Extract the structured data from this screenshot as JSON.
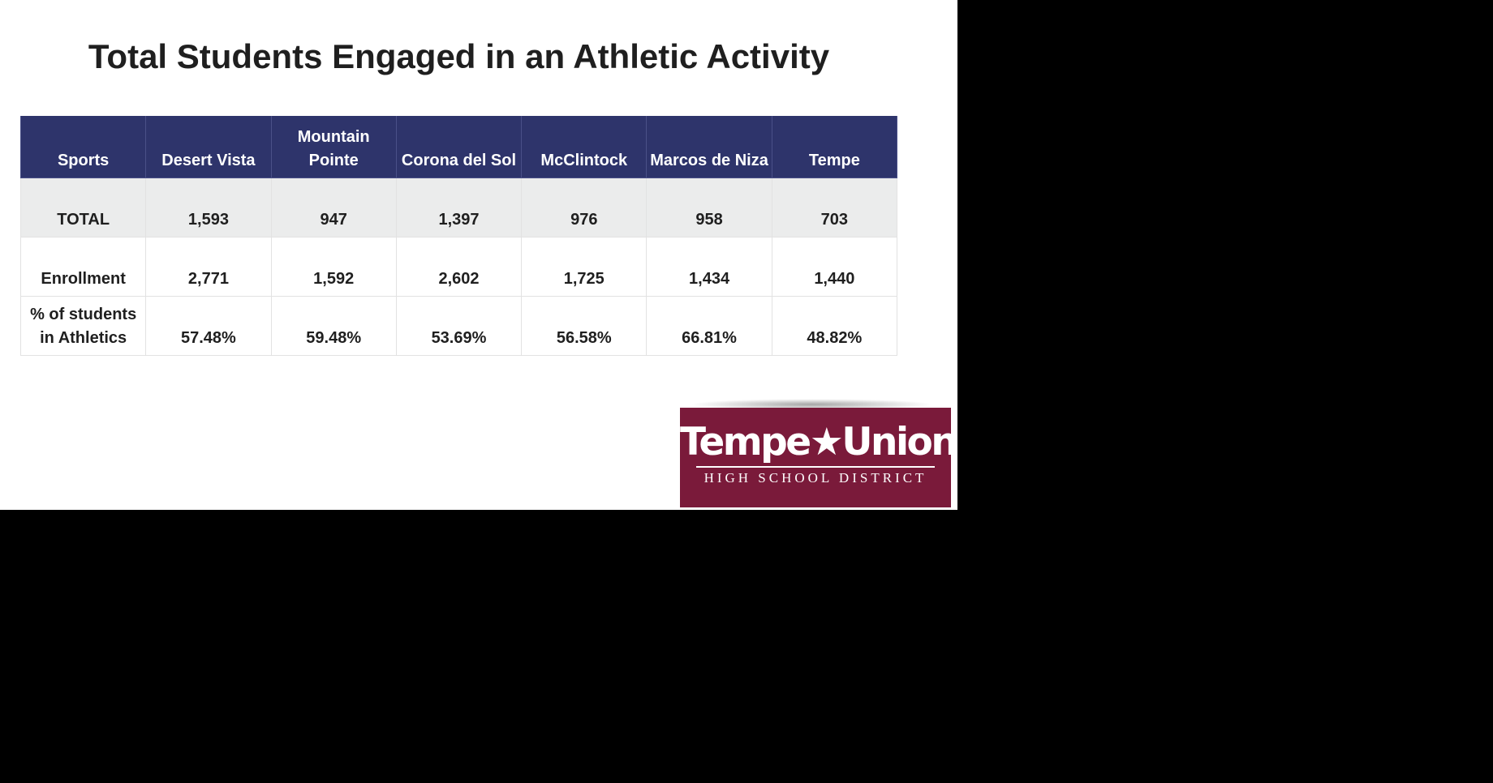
{
  "title": "Total Students Engaged in an Athletic Activity",
  "table": {
    "headers": [
      "Sports",
      "Desert Vista",
      "Mountain Pointe",
      "Corona del Sol",
      "McClintock",
      "Marcos de Niza",
      "Tempe"
    ],
    "rows": [
      {
        "label": "TOTAL",
        "values": [
          "1,593",
          "947",
          "1,397",
          "976",
          "958",
          "703"
        ]
      },
      {
        "label": "Enrollment",
        "values": [
          "2,771",
          "1,592",
          "2,602",
          "1,725",
          "1,434",
          "1,440"
        ]
      },
      {
        "label": "% of students in Athletics",
        "values": [
          "57.48%",
          "59.48%",
          "53.69%",
          "56.58%",
          "66.81%",
          "48.82%"
        ]
      }
    ]
  },
  "logo": {
    "name": "Tempe★Union",
    "subtitle": "HIGH SCHOOL DISTRICT"
  },
  "colors": {
    "header_background": "#2e346b",
    "shaded_row": "#ebecec",
    "logo_background": "#7a1a3a"
  }
}
